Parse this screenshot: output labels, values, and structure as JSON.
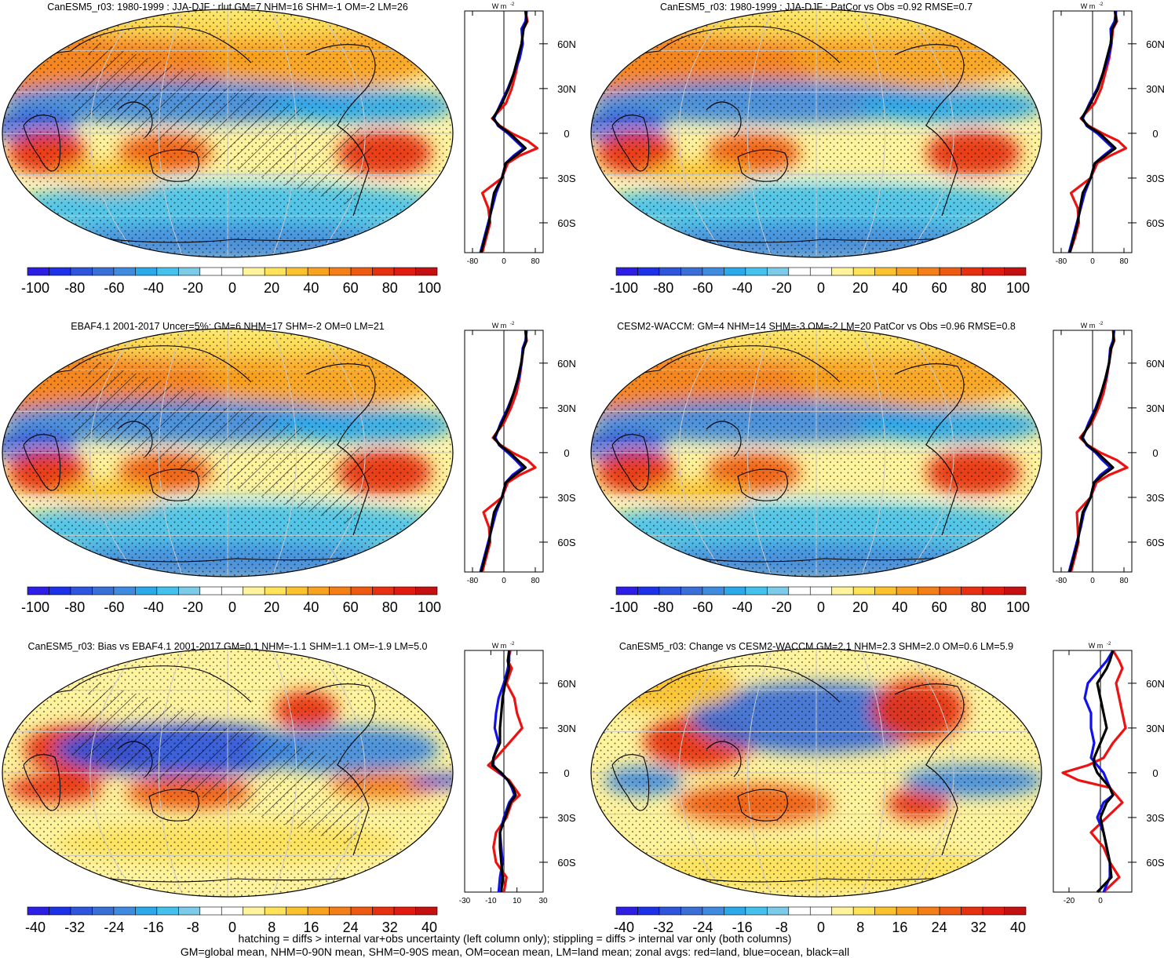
{
  "colors": {
    "land": "#ee1111",
    "ocean": "#1111ee",
    "all": "#000000",
    "scale": [
      "#2d1ee6",
      "#1d32e8",
      "#2e55dd",
      "#3a6fd8",
      "#3f8be0",
      "#2ba9ea",
      "#45c1ee",
      "#7ccbe9",
      "#ffffff",
      "#ffffff",
      "#fff39e",
      "#fde25a",
      "#fbc22d",
      "#f8a21f",
      "#f47e17",
      "#ef5a12",
      "#e73010",
      "#e11b10",
      "#c41010"
    ]
  },
  "zonal": {
    "unit": "W m",
    "unit_exp": "-2",
    "lat_labels": [
      "60N",
      "30N",
      "0",
      "30S",
      "60S"
    ],
    "lat_values": [
      60,
      30,
      0,
      -30,
      -60
    ]
  },
  "panels": [
    {
      "id": "p1",
      "title": "CanESM5_r03: 1980-1999 : JJA-DJF : rlut GM=7 NHM=16 SHM=-1 OM=-2 LM=26",
      "colorbar_labels": [
        "-100",
        "-80",
        "-60",
        "-40",
        "-20",
        "0",
        "20",
        "40",
        "60",
        "80",
        "100"
      ],
      "hatched": true,
      "chart_data": {
        "type": "line",
        "xlim": [
          -100,
          100
        ],
        "x_ticks": [
          "-80",
          "0",
          "80"
        ],
        "x_tick_values": [
          -80,
          0,
          80
        ],
        "lat": [
          82,
          75,
          70,
          60,
          50,
          40,
          30,
          20,
          10,
          5,
          0,
          -5,
          -10,
          -15,
          -20,
          -30,
          -40,
          -50,
          -60,
          -70,
          -80
        ],
        "series": [
          {
            "key": "land",
            "values": [
              55,
              60,
              50,
              45,
              38,
              30,
              20,
              5,
              -30,
              -10,
              20,
              60,
              85,
              40,
              10,
              -5,
              -55,
              -40,
              -35,
              -45,
              -55
            ]
          },
          {
            "key": "ocean",
            "values": [
              58,
              55,
              45,
              48,
              40,
              25,
              10,
              -8,
              -25,
              -15,
              10,
              30,
              50,
              25,
              5,
              -5,
              -20,
              -30,
              -40,
              -50,
              -60
            ]
          },
          {
            "key": "all",
            "values": [
              55,
              58,
              50,
              45,
              35,
              25,
              12,
              -5,
              -28,
              -12,
              15,
              35,
              55,
              30,
              5,
              -5,
              -25,
              -32,
              -38,
              -48,
              -58
            ]
          }
        ]
      }
    },
    {
      "id": "p2",
      "title": "CanESM5_r03: 1980-1999 : JJA-DJF : PatCor vs Obs =0.92 RMSE=0.7",
      "colorbar_labels": [
        "-100",
        "-80",
        "-60",
        "-40",
        "-20",
        "0",
        "20",
        "40",
        "60",
        "80",
        "100"
      ],
      "hatched": false,
      "chart_data": {
        "type": "line",
        "xlim": [
          -100,
          100
        ],
        "x_ticks": [
          "-80",
          "0",
          "80"
        ],
        "x_tick_values": [
          -80,
          0,
          80
        ],
        "lat": [
          82,
          75,
          70,
          60,
          50,
          40,
          30,
          20,
          10,
          5,
          0,
          -5,
          -10,
          -15,
          -20,
          -30,
          -40,
          -50,
          -60,
          -70,
          -80
        ],
        "series": [
          {
            "key": "land",
            "values": [
              58,
              62,
              52,
              48,
              42,
              32,
              22,
              5,
              -30,
              -10,
              25,
              65,
              85,
              45,
              12,
              -5,
              -55,
              -38,
              -35,
              -45,
              -58
            ]
          },
          {
            "key": "ocean",
            "values": [
              60,
              56,
              46,
              48,
              40,
              26,
              12,
              -8,
              -25,
              -15,
              12,
              32,
              52,
              28,
              6,
              -5,
              -20,
              -30,
              -40,
              -50,
              -60
            ]
          },
          {
            "key": "all",
            "values": [
              57,
              60,
              50,
              46,
              36,
              26,
              14,
              -5,
              -28,
              -12,
              18,
              38,
              58,
              32,
              6,
              -5,
              -25,
              -32,
              -38,
              -48,
              -58
            ]
          }
        ]
      }
    },
    {
      "id": "p3",
      "title": "EBAF4.1 2001-2017 Uncer=5%: GM=6 NHM=17 SHM=-2 OM=0 LM=21",
      "colorbar_labels": [
        "-100",
        "-80",
        "-60",
        "-40",
        "-20",
        "0",
        "20",
        "40",
        "60",
        "80",
        "100"
      ],
      "hatched": true,
      "chart_data": {
        "type": "line",
        "xlim": [
          -100,
          100
        ],
        "x_ticks": [
          "-80",
          "0",
          "80"
        ],
        "x_tick_values": [
          -80,
          0,
          80
        ],
        "lat": [
          82,
          75,
          70,
          60,
          50,
          40,
          30,
          20,
          10,
          5,
          0,
          -5,
          -10,
          -15,
          -20,
          -30,
          -40,
          -50,
          -60,
          -70,
          -80
        ],
        "series": [
          {
            "key": "land",
            "values": [
              55,
              58,
              50,
              45,
              40,
              32,
              18,
              0,
              -28,
              -8,
              22,
              60,
              80,
              40,
              10,
              -5,
              -52,
              -38,
              -35,
              -45,
              -55
            ]
          },
          {
            "key": "ocean",
            "values": [
              58,
              55,
              48,
              45,
              38,
              25,
              10,
              -8,
              -22,
              -12,
              10,
              30,
              48,
              22,
              5,
              -5,
              -20,
              -30,
              -40,
              -50,
              -60
            ]
          },
          {
            "key": "all",
            "values": [
              55,
              57,
              50,
              44,
              36,
              25,
              12,
              -5,
              -25,
              -10,
              15,
              35,
              55,
              28,
              5,
              -5,
              -25,
              -32,
              -38,
              -48,
              -58
            ]
          }
        ]
      }
    },
    {
      "id": "p4",
      "title": "CESM2-WACCM: GM=4 NHM=14 SHM=-3 OM=-2 LM=20 PatCor vs Obs =0.96 RMSE=0.8",
      "colorbar_labels": [
        "-100",
        "-80",
        "-60",
        "-40",
        "-20",
        "0",
        "20",
        "40",
        "60",
        "80",
        "100"
      ],
      "hatched": false,
      "chart_data": {
        "type": "line",
        "xlim": [
          -100,
          100
        ],
        "x_ticks": [
          "-80",
          "0",
          "80"
        ],
        "x_tick_values": [
          -80,
          0,
          80
        ],
        "lat": [
          82,
          75,
          70,
          60,
          50,
          40,
          30,
          20,
          10,
          5,
          0,
          -5,
          -10,
          -15,
          -20,
          -30,
          -40,
          -50,
          -60,
          -70,
          -80
        ],
        "series": [
          {
            "key": "land",
            "values": [
              52,
              55,
              48,
              42,
              36,
              28,
              15,
              -2,
              -32,
              -12,
              20,
              62,
              88,
              42,
              10,
              -5,
              -40,
              -38,
              -36,
              -45,
              -55
            ]
          },
          {
            "key": "ocean",
            "values": [
              55,
              52,
              45,
              42,
              34,
              22,
              8,
              -10,
              -25,
              -15,
              8,
              25,
              45,
              20,
              4,
              -5,
              -22,
              -30,
              -40,
              -50,
              -60
            ]
          },
          {
            "key": "all",
            "values": [
              53,
              54,
              47,
              42,
              33,
              22,
              10,
              -6,
              -28,
              -13,
              12,
              32,
              52,
              26,
              4,
              -5,
              -25,
              -32,
              -38,
              -48,
              -58
            ]
          }
        ]
      }
    },
    {
      "id": "p5",
      "title": "CanESM5_r03: Bias vs EBAF4.1 2001-2017 GM=0.1 NHM=-1.1 SHM=1.1 OM=-1.9 LM=5.0",
      "colorbar_labels": [
        "-40",
        "-32",
        "-24",
        "-16",
        "-8",
        "0",
        "8",
        "16",
        "24",
        "32",
        "40"
      ],
      "hatched": true,
      "chart_data": {
        "type": "line",
        "xlim": [
          -30,
          30
        ],
        "x_ticks": [
          "-30",
          "-10",
          "10",
          "30"
        ],
        "x_tick_values": [
          -30,
          -10,
          10,
          30
        ],
        "lat": [
          82,
          75,
          70,
          60,
          50,
          40,
          30,
          20,
          10,
          5,
          0,
          -5,
          -10,
          -15,
          -20,
          -30,
          -40,
          -50,
          -60,
          -70,
          -80
        ],
        "series": [
          {
            "key": "land",
            "values": [
              5,
              3,
              6,
              2,
              8,
              10,
              14,
              4,
              -6,
              -12,
              -4,
              4,
              8,
              12,
              6,
              2,
              -6,
              -8,
              -6,
              2,
              0
            ]
          },
          {
            "key": "ocean",
            "values": [
              4,
              4,
              3,
              0,
              -4,
              -6,
              -7,
              -4,
              -8,
              -8,
              -3,
              3,
              6,
              8,
              4,
              0,
              -3,
              -2,
              -1,
              -3,
              -4
            ]
          },
          {
            "key": "all",
            "values": [
              4,
              3,
              4,
              1,
              -1,
              -2,
              -3,
              -3,
              -8,
              -9,
              -2,
              3,
              7,
              9,
              5,
              1,
              -3,
              -3,
              -2,
              -1,
              -2
            ]
          }
        ]
      }
    },
    {
      "id": "p6",
      "title": "CanESM5_r03: Change vs CESM2-WACCM GM=2.1 NHM=2.3 SHM=2.0 OM=0.6 LM=5.9",
      "colorbar_labels": [
        "-40",
        "-32",
        "-24",
        "-16",
        "-8",
        "0",
        "8",
        "16",
        "24",
        "32",
        "40"
      ],
      "hatched": false,
      "chart_data": {
        "type": "line",
        "xlim": [
          -30,
          20
        ],
        "x_ticks": [
          "-20",
          "0"
        ],
        "x_tick_values": [
          -20,
          0
        ],
        "lat": [
          82,
          75,
          70,
          60,
          50,
          40,
          30,
          20,
          10,
          5,
          0,
          -5,
          -10,
          -15,
          -20,
          -30,
          -40,
          -50,
          -60,
          -70,
          -80
        ],
        "series": [
          {
            "key": "land",
            "values": [
              8,
              12,
              14,
              10,
              12,
              14,
              16,
              8,
              2,
              -8,
              -24,
              -14,
              6,
              10,
              14,
              4,
              -6,
              2,
              6,
              12,
              2
            ]
          },
          {
            "key": "ocean",
            "values": [
              8,
              4,
              0,
              -8,
              -10,
              -6,
              -6,
              -4,
              -6,
              -2,
              2,
              4,
              6,
              8,
              2,
              -2,
              2,
              4,
              6,
              6,
              2
            ]
          },
          {
            "key": "all",
            "values": [
              8,
              6,
              4,
              -2,
              0,
              2,
              4,
              0,
              -4,
              -4,
              -2,
              2,
              6,
              8,
              4,
              0,
              2,
              4,
              6,
              7,
              -2
            ]
          }
        ]
      }
    }
  ],
  "footer": {
    "line1": "hatching = diffs > internal var+obs uncertainty (left column only); stippling = diffs > internal var only (both columns)",
    "line2": "GM=global mean, NHM=0-90N mean, SHM=0-90S mean, OM=ocean mean, LM=land mean; zonal avgs: red=land, blue=ocean, black=all"
  }
}
